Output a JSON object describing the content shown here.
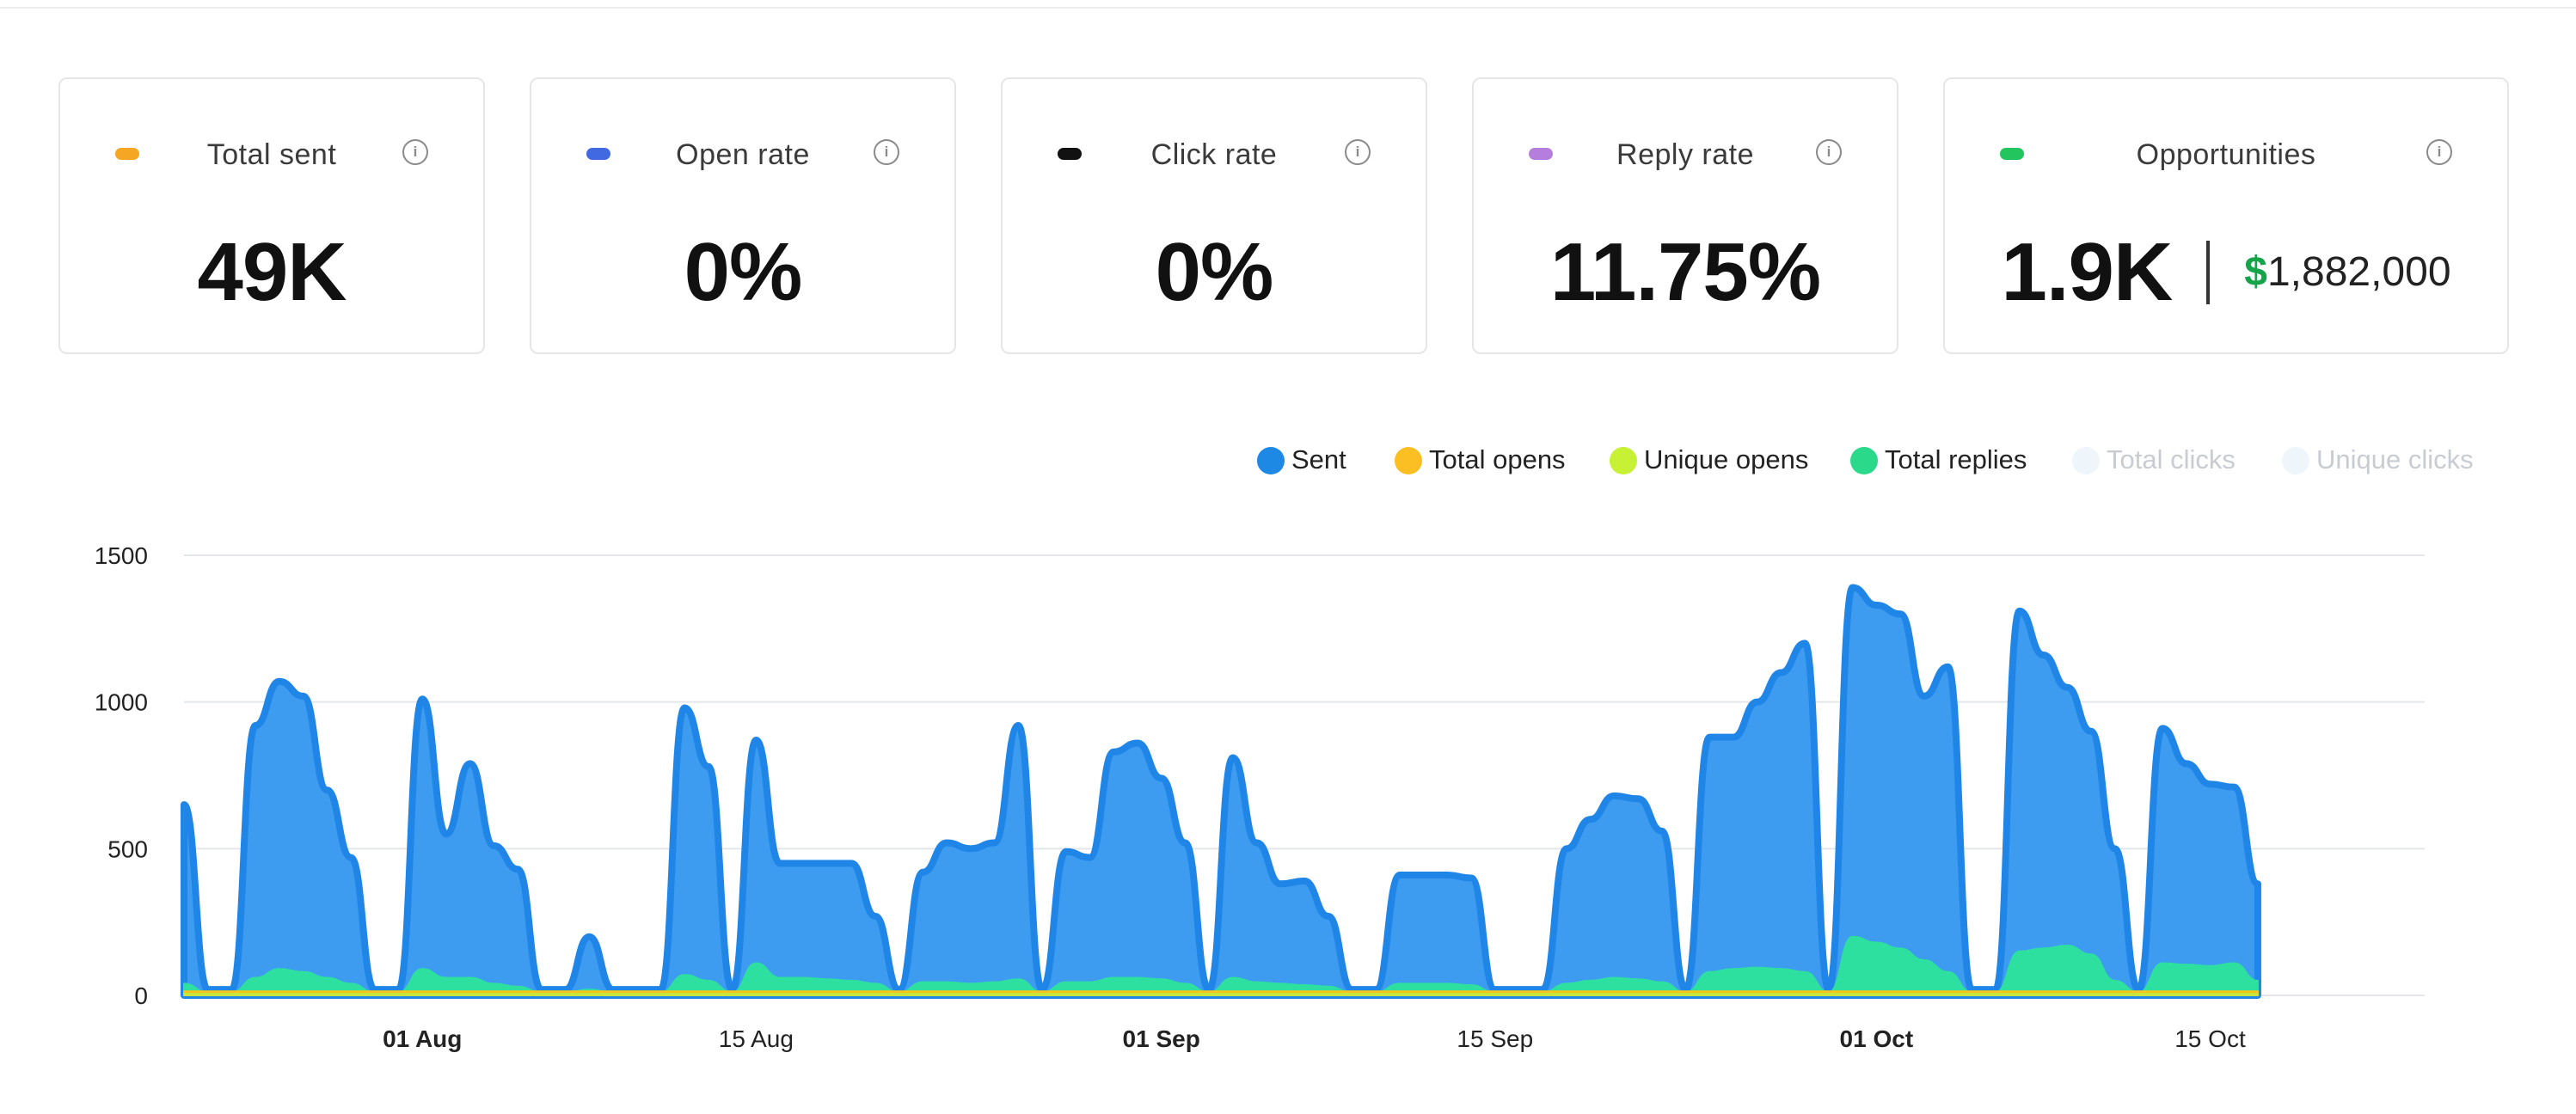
{
  "cards": [
    {
      "label": "Total sent",
      "value": "49K",
      "color": "#f5a623"
    },
    {
      "label": "Open rate",
      "value": "0%",
      "color": "#4169e1"
    },
    {
      "label": "Click rate",
      "value": "0%",
      "color": "#111111"
    },
    {
      "label": "Reply rate",
      "value": "11.75%",
      "color": "#b57edc"
    },
    {
      "label": "Opportunities",
      "value": "1.9K",
      "money_symbol": "$",
      "money_value": "1,882,000",
      "color": "#22c55e"
    }
  ],
  "info_glyph": "i",
  "legend": [
    {
      "label": "Sent",
      "color": "#1e88e5",
      "dim": false
    },
    {
      "label": "Total opens",
      "color": "#fbbf24",
      "dim": false
    },
    {
      "label": "Unique opens",
      "color": "#c6f135",
      "dim": false
    },
    {
      "label": "Total replies",
      "color": "#2bd98a",
      "dim": false
    },
    {
      "label": "Total clicks",
      "color": "#eef6fb",
      "dim": true
    },
    {
      "label": "Unique clicks",
      "color": "#eef6fb",
      "dim": true
    }
  ],
  "chart_data": {
    "type": "area",
    "x_start": "2024-07-22",
    "x_step_days": 1,
    "x_end": "2024-10-24",
    "ylim": [
      0,
      1500
    ],
    "y_ticks": [
      0,
      500,
      1000,
      1500
    ],
    "grid": true,
    "legend_position": "top-right",
    "x_tick_labels": [
      {
        "date": "2024-08-01",
        "label": "01 Aug",
        "bold": true
      },
      {
        "date": "2024-08-15",
        "label": "15 Aug",
        "bold": false
      },
      {
        "date": "2024-09-01",
        "label": "01 Sep",
        "bold": true
      },
      {
        "date": "2024-09-15",
        "label": "15 Sep",
        "bold": false
      },
      {
        "date": "2024-10-01",
        "label": "01 Oct",
        "bold": true
      },
      {
        "date": "2024-10-15",
        "label": "15 Oct",
        "bold": false
      }
    ],
    "series": [
      {
        "name": "Sent",
        "color": "#2b91ec",
        "values": [
          650,
          20,
          20,
          920,
          1070,
          1020,
          700,
          470,
          20,
          20,
          1010,
          550,
          790,
          510,
          430,
          20,
          20,
          200,
          20,
          20,
          20,
          980,
          780,
          20,
          870,
          450,
          450,
          450,
          450,
          270,
          20,
          420,
          520,
          500,
          520,
          920,
          20,
          490,
          470,
          830,
          860,
          740,
          520,
          20,
          810,
          520,
          380,
          390,
          270,
          20,
          20,
          410,
          410,
          410,
          400,
          20,
          20,
          20,
          500,
          600,
          680,
          670,
          560,
          20,
          880,
          880,
          1000,
          1100,
          1200,
          20,
          1390,
          1330,
          1300,
          1020,
          1120,
          20,
          20,
          1310,
          1160,
          1050,
          900,
          500,
          20,
          910,
          790,
          720,
          710,
          380
        ]
      },
      {
        "name": "Total replies",
        "color": "#2ee0a0",
        "values": [
          40,
          10,
          10,
          60,
          90,
          80,
          60,
          40,
          10,
          10,
          90,
          60,
          60,
          40,
          30,
          10,
          10,
          20,
          10,
          10,
          10,
          70,
          50,
          10,
          110,
          60,
          60,
          55,
          50,
          40,
          10,
          45,
          45,
          40,
          45,
          55,
          10,
          45,
          45,
          60,
          60,
          55,
          40,
          10,
          60,
          45,
          40,
          35,
          30,
          10,
          10,
          40,
          40,
          40,
          35,
          10,
          10,
          10,
          40,
          50,
          60,
          55,
          45,
          10,
          80,
          90,
          95,
          90,
          80,
          10,
          200,
          180,
          160,
          120,
          80,
          10,
          10,
          150,
          160,
          170,
          140,
          50,
          10,
          110,
          105,
          100,
          110,
          50
        ]
      },
      {
        "name": "Total opens",
        "color": "#f5c518",
        "values": [
          14,
          14,
          14,
          14,
          14,
          14,
          14,
          14,
          14,
          14,
          14,
          14,
          14,
          14,
          14,
          14,
          14,
          14,
          14,
          14,
          14,
          14,
          14,
          14,
          14,
          14,
          14,
          14,
          14,
          14,
          14,
          14,
          14,
          14,
          14,
          14,
          14,
          14,
          14,
          14,
          14,
          14,
          14,
          14,
          14,
          14,
          14,
          14,
          14,
          14,
          14,
          14,
          14,
          14,
          14,
          14,
          14,
          14,
          14,
          14,
          14,
          14,
          14,
          14,
          14,
          14,
          14,
          14,
          14,
          14,
          14,
          14,
          14,
          14,
          14,
          14,
          14,
          14,
          14,
          14,
          14,
          14,
          14,
          14,
          14,
          14,
          14,
          14
        ]
      },
      {
        "name": "Unique opens",
        "color": "#c9e43a",
        "values": [
          6,
          6,
          6,
          6,
          6,
          6,
          6,
          6,
          6,
          6,
          6,
          6,
          6,
          6,
          6,
          6,
          6,
          6,
          6,
          6,
          6,
          6,
          6,
          6,
          6,
          6,
          6,
          6,
          6,
          6,
          6,
          6,
          6,
          6,
          6,
          6,
          6,
          6,
          6,
          6,
          6,
          6,
          6,
          6,
          6,
          6,
          6,
          6,
          6,
          6,
          6,
          6,
          6,
          6,
          6,
          6,
          6,
          6,
          6,
          6,
          6,
          6,
          6,
          6,
          6,
          6,
          6,
          6,
          6,
          6,
          6,
          6,
          6,
          6,
          6,
          6,
          6,
          6,
          6,
          6,
          6,
          6,
          6,
          6,
          6,
          6,
          6,
          6
        ]
      }
    ]
  }
}
